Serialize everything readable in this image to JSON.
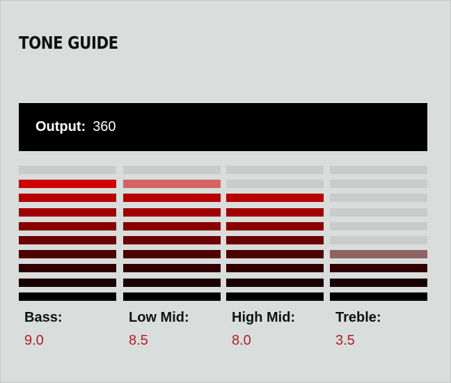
{
  "title": "TONE GUIDE",
  "output": {
    "label": "Output:",
    "value": "360"
  },
  "colors": {
    "accent": "#b01e23",
    "empty": "#c9cccb",
    "levels": [
      "#d00000",
      "#b80000",
      "#a00000",
      "#880000",
      "#6c0000",
      "#4e0000",
      "#300000",
      "#180000",
      "#000000"
    ]
  },
  "max_level": 10,
  "bands": [
    {
      "name": "Bass:",
      "value": "9.0",
      "level": 9.0
    },
    {
      "name": "Low Mid:",
      "value": "8.5",
      "level": 8.5
    },
    {
      "name": "High Mid:",
      "value": "8.0",
      "level": 8.0
    },
    {
      "name": "Treble:",
      "value": "3.5",
      "level": 3.5
    }
  ]
}
